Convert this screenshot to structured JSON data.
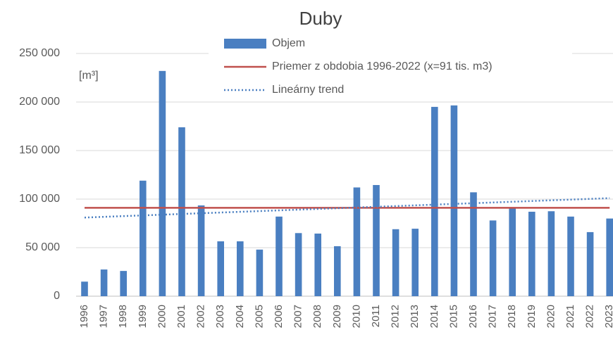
{
  "chart_data": {
    "type": "bar",
    "title": "Duby",
    "y_unit_label": "[m³]",
    "categories": [
      "1996",
      "1997",
      "1998",
      "1999",
      "2000",
      "2001",
      "2002",
      "2003",
      "2004",
      "2005",
      "2006",
      "2007",
      "2008",
      "2009",
      "2010",
      "2011",
      "2012",
      "2013",
      "2014",
      "2015",
      "2016",
      "2017",
      "2018",
      "2019",
      "2020",
      "2021",
      "2022",
      "2023"
    ],
    "series": [
      {
        "name": "Objem",
        "type": "bar",
        "color": "#4a7fc1",
        "values": [
          15000,
          27500,
          26000,
          119000,
          232000,
          174000,
          93500,
          56500,
          56500,
          48000,
          82000,
          65000,
          64500,
          51500,
          112000,
          114500,
          69000,
          69500,
          195000,
          196500,
          107000,
          78000,
          91000,
          87000,
          87500,
          82000,
          66000,
          80000
        ]
      },
      {
        "name": "Priemer z obdobia 1996-2022 (x=91 tis. m3)",
        "type": "line",
        "color": "#c0504d",
        "dash": "solid",
        "values": [
          91000,
          91000,
          91000,
          91000,
          91000,
          91000,
          91000,
          91000,
          91000,
          91000,
          91000,
          91000,
          91000,
          91000,
          91000,
          91000,
          91000,
          91000,
          91000,
          91000,
          91000,
          91000,
          91000,
          91000,
          91000,
          91000,
          91000,
          91000
        ]
      },
      {
        "name": "Lineárny trend",
        "type": "line",
        "color": "#4a7fc1",
        "dash": "dotted",
        "values": [
          81000,
          81740,
          82480,
          83220,
          83960,
          84700,
          85440,
          86180,
          86920,
          87660,
          88400,
          89140,
          89880,
          90620,
          91360,
          92100,
          92840,
          93580,
          94320,
          95060,
          95800,
          96540,
          97280,
          98020,
          98760,
          99500,
          100240,
          100980
        ]
      }
    ],
    "ylim": [
      0,
      250000
    ],
    "yticks": [
      0,
      {
        "value": 50000,
        "label": "50 000"
      },
      {
        "value": 100000,
        "label": "100 000"
      },
      {
        "value": 150000,
        "label": "150 000"
      },
      {
        "value": 200000,
        "label": "200 000"
      },
      {
        "value": 250000,
        "label": "250 000"
      }
    ],
    "grid": true
  }
}
